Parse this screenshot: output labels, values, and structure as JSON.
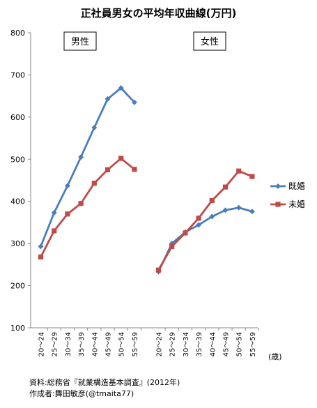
{
  "chart_data": {
    "type": "line",
    "title": "正社員男女の平均年収曲線(万円)",
    "yticks": [
      100,
      200,
      300,
      400,
      500,
      600,
      700,
      800
    ],
    "ylim": [
      100,
      800
    ],
    "categories": [
      "20〜24",
      "25〜29",
      "30〜34",
      "35〜39",
      "40〜44",
      "45〜49",
      "50〜54",
      "55〜59"
    ],
    "x_unit": "(歳)",
    "grid": false,
    "legend_position": "right",
    "panels": [
      {
        "label": "男性",
        "series": [
          {
            "name": "既婚",
            "color": "#4A7EBB",
            "marker": "diamond",
            "values": [
              293,
              373,
              437,
              505,
              575,
              643,
              669,
              635
            ]
          },
          {
            "name": "未婚",
            "color": "#BE4B48",
            "marker": "square",
            "values": [
              268,
              330,
              370,
              395,
              443,
              475,
              502,
              476
            ]
          }
        ]
      },
      {
        "label": "女性",
        "series": [
          {
            "name": "既婚",
            "color": "#4A7EBB",
            "marker": "diamond",
            "values": [
              233,
              300,
              327,
              344,
              364,
              379,
              385,
              376
            ]
          },
          {
            "name": "未婚",
            "color": "#BE4B48",
            "marker": "square",
            "values": [
              237,
              293,
              325,
              360,
              402,
              434,
              472,
              459
            ]
          }
        ]
      }
    ]
  },
  "footer": {
    "source": "資料:総務省『就業構造基本調査』(2012年)",
    "author": "作成者:舞田敏彦(@tmaita77)"
  }
}
